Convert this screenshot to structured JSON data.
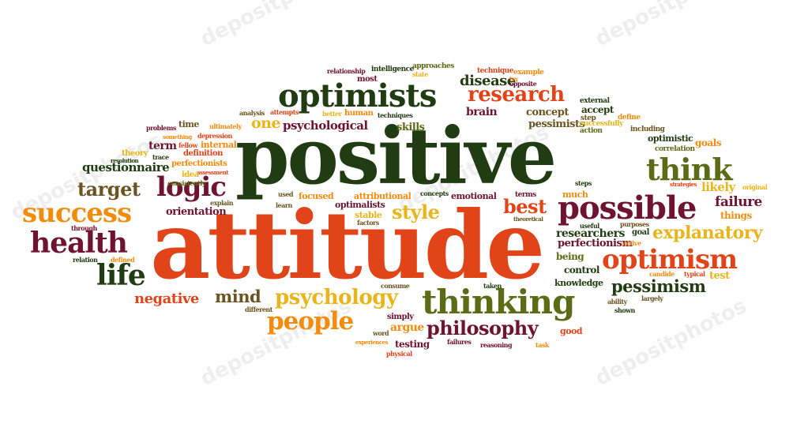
{
  "palette": {
    "dark_green": "#213c12",
    "olive": "#5c6b16",
    "red_orange": "#e2441a",
    "orange": "#f28c0f",
    "yellow": "#e9b51c",
    "maroon": "#6e1330",
    "brown": "#6b5420"
  },
  "watermark": "depositphotos",
  "words": {
    "positive": "positive",
    "attitude": "attitude",
    "optimists": "optimists",
    "research": "research",
    "one": "one",
    "psychological": "psychological",
    "skills": "skills",
    "brain": "brain",
    "concept": "concept",
    "pessimists": "pessimists",
    "disease": "disease",
    "think": "think",
    "logic": "logic",
    "target": "target",
    "success": "success",
    "health": "health",
    "life": "life",
    "negative": "negative",
    "mind": "mind",
    "psychology": "psychology",
    "people": "people",
    "thinking": "thinking",
    "philosophy": "philosophy",
    "possible": "possible",
    "best": "best",
    "style": "style",
    "optimism": "optimism",
    "explanatory": "explanatory",
    "researchers": "researchers",
    "perfectionism": "perfectionism",
    "pessimism": "pessimism",
    "questionnaire": "questionnaire",
    "orientation": "orientation",
    "failure": "failure",
    "things": "things",
    "likely": "likely",
    "goals": "goals",
    "optimistic": "optimistic",
    "correlation": "correlation",
    "including": "including",
    "external": "external",
    "accept": "accept",
    "step": "step",
    "define": "define",
    "successfully": "successfully",
    "action": "action",
    "relationship": "relationship",
    "intelligence": "intelligence",
    "approaches": "approaches",
    "technique": "technique",
    "example": "example",
    "most": "most",
    "state": "state",
    "try": "try",
    "opposite": "opposite",
    "analysis": "analysis",
    "attempts": "attempts",
    "better": "better",
    "human": "human",
    "techniques": "techniques",
    "problems": "problems",
    "time": "time",
    "ultimately": "ultimately",
    "something": "something",
    "depression": "depression",
    "theory": "theory",
    "term": "term",
    "fellow": "fellow",
    "internal": "internal",
    "trace": "trace",
    "resolution": "resolution",
    "definition": "definition",
    "perfectionists": "perfectionists",
    "assessment": "assessment",
    "idea": "idea",
    "consistently": "consistently",
    "explain": "explain",
    "through": "through",
    "relation": "relation",
    "defined": "defined",
    "used": "used",
    "learn": "learn",
    "focused": "focused",
    "optimalists": "optimalists",
    "stable": "stable",
    "factors": "factors",
    "attributional": "attributional",
    "concepts": "concepts",
    "emotional": "emotional",
    "terms": "terms",
    "theoretical": "theoretical",
    "much": "much",
    "steps": "steps",
    "strategies": "strategies",
    "original": "original",
    "useful": "useful",
    "purposes": "purposes",
    "active": "active",
    "goal": "goal",
    "being": "being",
    "control": "control",
    "knowledge": "knowledge",
    "candide": "candide",
    "typical": "typical",
    "test": "test",
    "ability": "ability",
    "largely": "largely",
    "shown": "shown",
    "taken": "taken",
    "consume": "consume",
    "different": "different",
    "word": "word",
    "simply": "simply",
    "argue": "argue",
    "testing": "testing",
    "experiences": "experiences",
    "physical": "physical",
    "failures": "failures",
    "reasoning": "reasoning",
    "task": "task",
    "good": "good"
  }
}
